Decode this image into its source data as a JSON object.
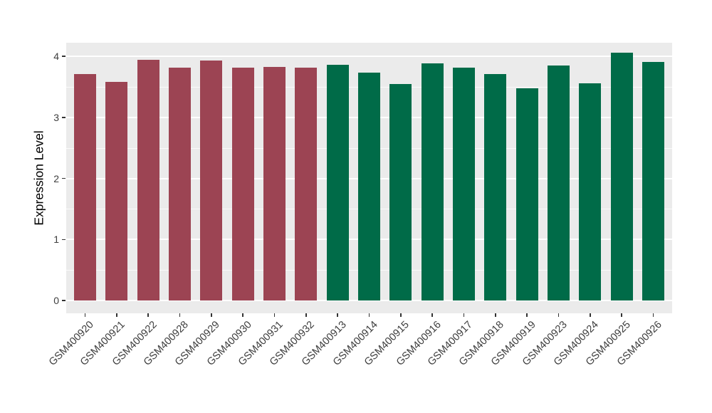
{
  "chart_data": {
    "type": "bar",
    "title": "",
    "xlabel": "",
    "ylabel": "Expression Level",
    "categories": [
      "GSM400920",
      "GSM400921",
      "GSM400922",
      "GSM400928",
      "GSM400929",
      "GSM400930",
      "GSM400931",
      "GSM400932",
      "GSM400913",
      "GSM400914",
      "GSM400915",
      "GSM400916",
      "GSM400917",
      "GSM400918",
      "GSM400919",
      "GSM400923",
      "GSM400924",
      "GSM400925",
      "GSM400926"
    ],
    "values": [
      3.71,
      3.58,
      3.94,
      3.82,
      3.93,
      3.82,
      3.83,
      3.82,
      3.86,
      3.73,
      3.55,
      3.89,
      3.82,
      3.71,
      3.48,
      3.85,
      3.56,
      4.06,
      3.91
    ],
    "group_index": [
      0,
      0,
      0,
      0,
      0,
      0,
      0,
      0,
      1,
      1,
      1,
      1,
      1,
      1,
      1,
      1,
      1,
      1,
      1
    ],
    "group_colors": [
      "#9C4453",
      "#006B48"
    ],
    "yticks": [
      0,
      1,
      2,
      3,
      4
    ],
    "ylim": [
      0,
      4.22
    ],
    "x_tick_angle": 45,
    "legend": "none",
    "grid": "on",
    "panel_background": "#EBEBEB",
    "gridline_color": "#FFFFFF",
    "axis_text_color": "#3D3D3D",
    "axis_title_color": "#000000",
    "tick_mark_color": "#333333"
  }
}
